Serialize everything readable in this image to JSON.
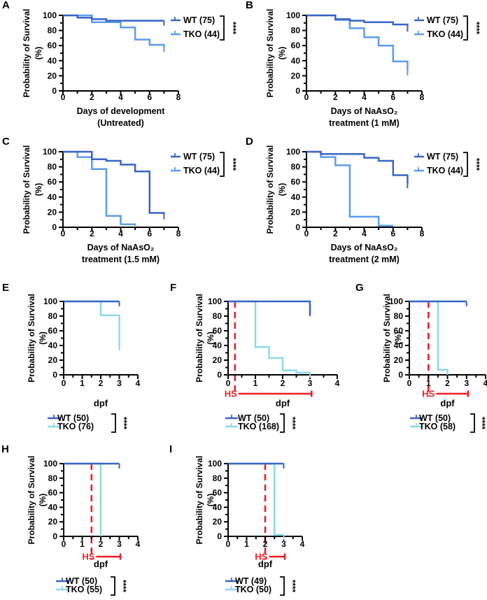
{
  "figure": {
    "description": "Kaplan-Meier survival curves, panels A-I",
    "significance_label": "****",
    "hs_label": "HS",
    "colors": {
      "wt_blue": "#3865C6",
      "tko_blue": "#5C9CEF",
      "tko_cyan": "#8ED7EB",
      "hs_red": "#EC2026",
      "axis": "#000000"
    }
  },
  "chart_data": [
    {
      "id": "A",
      "type": "line",
      "subtype": "kaplan-meier-step",
      "xlabel": [
        "Days of development",
        "(Untreated)"
      ],
      "ylabel": [
        "Probability of Survival",
        "(%)"
      ],
      "xlim": [
        0,
        8
      ],
      "ylim": [
        0,
        100
      ],
      "xticks": [
        0,
        2,
        4,
        6,
        8
      ],
      "yticks": [
        0,
        20,
        40,
        60,
        80,
        100
      ],
      "legend_position": "right",
      "significance": "****",
      "series": [
        {
          "name": "WT (75)",
          "color": "wt_blue",
          "end_tick": true,
          "points": [
            [
              0,
              100
            ],
            [
              1,
              97
            ],
            [
              2,
              95
            ],
            [
              3,
              93
            ],
            [
              7,
              93
            ]
          ]
        },
        {
          "name": "TKO (44)",
          "color": "tko_blue",
          "end_tick": true,
          "points": [
            [
              0,
              100
            ],
            [
              2,
              91
            ],
            [
              4,
              84
            ],
            [
              5,
              68
            ],
            [
              6,
              61
            ],
            [
              7,
              58
            ]
          ]
        }
      ]
    },
    {
      "id": "B",
      "type": "line",
      "subtype": "kaplan-meier-step",
      "xlabel": [
        "Days of NaAsO₂",
        "treatment (1 mM)"
      ],
      "ylabel": [
        "Probability of Survival",
        "(%)"
      ],
      "xlim": [
        0,
        8
      ],
      "ylim": [
        0,
        100
      ],
      "xticks": [
        0,
        2,
        4,
        6,
        8
      ],
      "yticks": [
        0,
        20,
        40,
        60,
        80,
        100
      ],
      "legend_position": "right",
      "significance": "****",
      "series": [
        {
          "name": "WT (75)",
          "color": "wt_blue",
          "end_tick": true,
          "points": [
            [
              0,
              100
            ],
            [
              2,
              95
            ],
            [
              3,
              93
            ],
            [
              4,
              91
            ],
            [
              6,
              88
            ],
            [
              7,
              85
            ]
          ]
        },
        {
          "name": "TKO (44)",
          "color": "tko_blue",
          "end_tick": true,
          "points": [
            [
              0,
              100
            ],
            [
              2,
              94
            ],
            [
              3,
              83
            ],
            [
              4,
              71
            ],
            [
              5,
              60
            ],
            [
              6,
              39
            ],
            [
              7,
              27
            ]
          ]
        }
      ]
    },
    {
      "id": "C",
      "type": "line",
      "subtype": "kaplan-meier-step",
      "xlabel": [
        "Days of NaAsO₂",
        "treatment (1.5 mM)"
      ],
      "ylabel": [
        "Probability of Survival",
        "(%)"
      ],
      "xlim": [
        0,
        8
      ],
      "ylim": [
        0,
        100
      ],
      "xticks": [
        0,
        2,
        4,
        6,
        8
      ],
      "yticks": [
        0,
        20,
        40,
        60,
        80,
        100
      ],
      "legend_position": "right",
      "significance": "****",
      "series": [
        {
          "name": "WT (75)",
          "color": "wt_blue",
          "end_tick": true,
          "points": [
            [
              0,
              100
            ],
            [
              2,
              90
            ],
            [
              3,
              88
            ],
            [
              4,
              83
            ],
            [
              5,
              74
            ],
            [
              6,
              19
            ],
            [
              7,
              17
            ]
          ]
        },
        {
          "name": "TKO (44)",
          "color": "tko_blue",
          "end_tick": false,
          "points": [
            [
              0,
              100
            ],
            [
              1,
              93
            ],
            [
              2,
              77
            ],
            [
              3,
              15
            ],
            [
              4,
              4
            ],
            [
              5,
              2
            ]
          ]
        }
      ]
    },
    {
      "id": "D",
      "type": "line",
      "subtype": "kaplan-meier-step",
      "xlabel": [
        "Days of NaAsO₂",
        "treatment (2 mM)"
      ],
      "ylabel": [
        "Probability of Survival",
        "(%)"
      ],
      "xlim": [
        0,
        8
      ],
      "ylim": [
        0,
        100
      ],
      "xticks": [
        0,
        2,
        4,
        6,
        8
      ],
      "yticks": [
        0,
        20,
        40,
        60,
        80,
        100
      ],
      "legend_position": "right",
      "significance": "****",
      "series": [
        {
          "name": "WT (75)",
          "color": "wt_blue",
          "end_tick": true,
          "points": [
            [
              0,
              100
            ],
            [
              1,
              97
            ],
            [
              4,
              92
            ],
            [
              5,
              88
            ],
            [
              6,
              69
            ],
            [
              7,
              58
            ]
          ]
        },
        {
          "name": "TKO (44)",
          "color": "tko_blue",
          "end_tick": false,
          "points": [
            [
              0,
              100
            ],
            [
              1,
              93
            ],
            [
              2,
              82
            ],
            [
              3,
              14
            ],
            [
              5,
              2
            ],
            [
              6,
              2
            ]
          ]
        }
      ]
    },
    {
      "id": "E",
      "type": "line",
      "subtype": "kaplan-meier-step",
      "xlabel": [
        "dpf"
      ],
      "ylabel": [
        "Probability of Survival",
        "(%)"
      ],
      "xlim": [
        0,
        4
      ],
      "ylim": [
        0,
        100
      ],
      "xticks": [
        0,
        1,
        2,
        3,
        4
      ],
      "yticks": [
        0,
        20,
        40,
        60,
        80,
        100
      ],
      "legend_position": "bottom",
      "significance": "****",
      "series": [
        {
          "name": "WT (50)",
          "color": "wt_blue",
          "end_tick": true,
          "points": [
            [
              0,
              100
            ],
            [
              3,
              100
            ]
          ]
        },
        {
          "name": "TKO (76)",
          "color": "tko_cyan",
          "end_tick": true,
          "points": [
            [
              0,
              100
            ],
            [
              2,
              81
            ],
            [
              3,
              40
            ]
          ]
        }
      ]
    },
    {
      "id": "F",
      "type": "line",
      "subtype": "kaplan-meier-step",
      "xlabel": [
        "dpf"
      ],
      "ylabel": [
        "Probability of Survival",
        "(%)"
      ],
      "xlim": [
        0,
        4
      ],
      "ylim": [
        0,
        100
      ],
      "xticks": [
        0,
        1,
        2,
        3,
        4
      ],
      "yticks": [
        0,
        20,
        40,
        60,
        80,
        100
      ],
      "legend_position": "bottom",
      "significance": "****",
      "hs": {
        "label": "HS",
        "line_x": 0.25,
        "bar": [
          0.38,
          3.06
        ]
      },
      "series": [
        {
          "name": "WT (50)",
          "color": "wt_blue",
          "end_tick": false,
          "points": [
            [
              0,
              100
            ],
            [
              3,
              100
            ],
            [
              3,
              80
            ]
          ]
        },
        {
          "name": "TKO (168)",
          "color": "tko_cyan",
          "end_tick": true,
          "points": [
            [
              0,
              100
            ],
            [
              1,
              38
            ],
            [
              1.5,
              23
            ],
            [
              2,
              6
            ],
            [
              2.5,
              3
            ],
            [
              3,
              3
            ]
          ]
        }
      ]
    },
    {
      "id": "G",
      "type": "line",
      "subtype": "kaplan-meier-step",
      "xlabel": [
        "dpf"
      ],
      "ylabel": [
        "Probability of Survival",
        "(%)"
      ],
      "xlim": [
        0,
        4
      ],
      "ylim": [
        0,
        100
      ],
      "xticks": [
        0,
        1,
        2,
        3,
        4
      ],
      "yticks": [
        0,
        20,
        40,
        60,
        80,
        100
      ],
      "legend_position": "bottom",
      "significance": "****",
      "hs": {
        "label": "HS",
        "line_x": 1,
        "bar": [
          1.4,
          3.08
        ]
      },
      "series": [
        {
          "name": "WT (50)",
          "color": "wt_blue",
          "end_tick": true,
          "points": [
            [
              0,
              100
            ],
            [
              3,
              100
            ]
          ]
        },
        {
          "name": "TKO (58)",
          "color": "tko_cyan",
          "end_tick": false,
          "points": [
            [
              0,
              100
            ],
            [
              1.5,
              7
            ],
            [
              2,
              0
            ]
          ]
        }
      ]
    },
    {
      "id": "H",
      "type": "line",
      "subtype": "kaplan-meier-step",
      "xlabel": [
        "dpf"
      ],
      "ylabel": [
        "Probability of Survival",
        "(%)"
      ],
      "xlim": [
        0,
        4
      ],
      "ylim": [
        0,
        100
      ],
      "xticks": [
        0,
        1,
        2,
        3,
        4
      ],
      "yticks": [
        0,
        20,
        40,
        60,
        80,
        100
      ],
      "legend_position": "bottom",
      "significance": "****",
      "hs": {
        "label": "HS",
        "line_x": 1.5,
        "bar": [
          1.75,
          3.06
        ]
      },
      "series": [
        {
          "name": "WT (50)",
          "color": "wt_blue",
          "end_tick": true,
          "points": [
            [
              0,
              100
            ],
            [
              3,
              100
            ]
          ]
        },
        {
          "name": "TKO (55)",
          "color": "tko_cyan",
          "end_tick": false,
          "points": [
            [
              0,
              100
            ],
            [
              2,
              0
            ]
          ]
        }
      ]
    },
    {
      "id": "I",
      "type": "line",
      "subtype": "kaplan-meier-step",
      "xlabel": [
        "dpf"
      ],
      "ylabel": [
        "Probability of Survival",
        "(%)"
      ],
      "xlim": [
        0,
        4
      ],
      "ylim": [
        0,
        100
      ],
      "xticks": [
        0,
        1,
        2,
        3,
        4
      ],
      "yticks": [
        0,
        20,
        40,
        60,
        80,
        100
      ],
      "legend_position": "bottom",
      "significance": "****",
      "hs": {
        "label": "HS",
        "line_x": 2,
        "bar": [
          2.2,
          3.06
        ]
      },
      "series": [
        {
          "name": "WT (49)",
          "color": "wt_blue",
          "end_tick": true,
          "points": [
            [
              0,
              100
            ],
            [
              3,
              100
            ]
          ]
        },
        {
          "name": "TKO (50)",
          "color": "tko_cyan",
          "end_tick": true,
          "points": [
            [
              0,
              100
            ],
            [
              2.5,
              2
            ],
            [
              3,
              2
            ]
          ]
        }
      ]
    }
  ]
}
